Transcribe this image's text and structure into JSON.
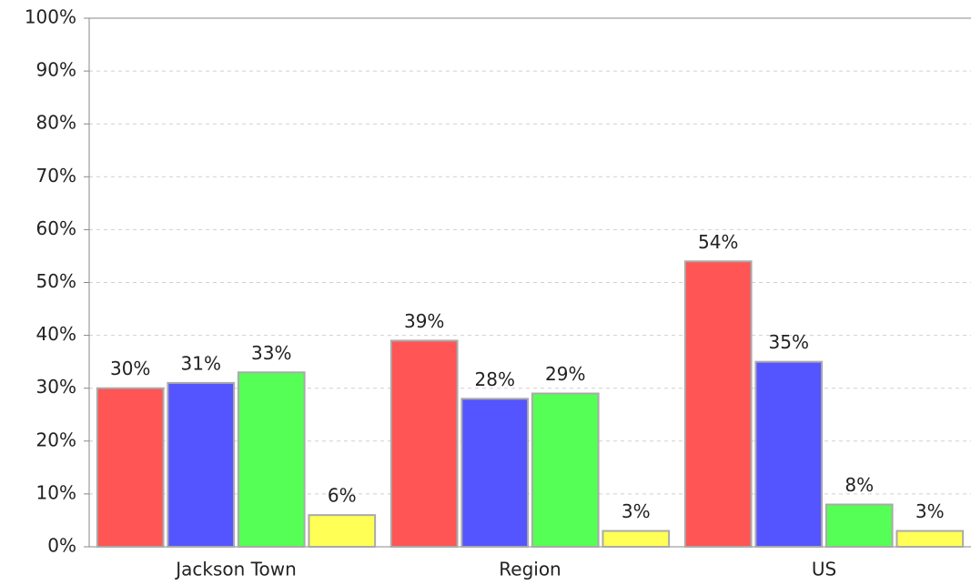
{
  "chart_data": {
    "type": "bar",
    "categories": [
      "Jackson Town",
      "Region",
      "US"
    ],
    "series": [
      {
        "color": "#ff5555",
        "values": [
          30,
          39,
          54
        ],
        "value_labels": [
          "30%",
          "39%",
          "54%"
        ]
      },
      {
        "color": "#5555ff",
        "values": [
          31,
          28,
          35
        ],
        "value_labels": [
          "31%",
          "28%",
          "35%"
        ]
      },
      {
        "color": "#55ff55",
        "values": [
          33,
          29,
          8
        ],
        "value_labels": [
          "33%",
          "29%",
          "8%"
        ]
      },
      {
        "color": "#ffff55",
        "values": [
          6,
          3,
          3
        ],
        "value_labels": [
          "6%",
          "3%",
          "3%"
        ]
      }
    ],
    "ylim": [
      0,
      100
    ],
    "yticks": [
      {
        "value": 0,
        "label": "0%"
      },
      {
        "value": 10,
        "label": "10%"
      },
      {
        "value": 20,
        "label": "20%"
      },
      {
        "value": 30,
        "label": "30%"
      },
      {
        "value": 40,
        "label": "40%"
      },
      {
        "value": 50,
        "label": "50%"
      },
      {
        "value": 60,
        "label": "60%"
      },
      {
        "value": 70,
        "label": "70%"
      },
      {
        "value": 80,
        "label": "80%"
      },
      {
        "value": 90,
        "label": "90%"
      },
      {
        "value": 100,
        "label": "100%"
      }
    ],
    "grid": true
  }
}
